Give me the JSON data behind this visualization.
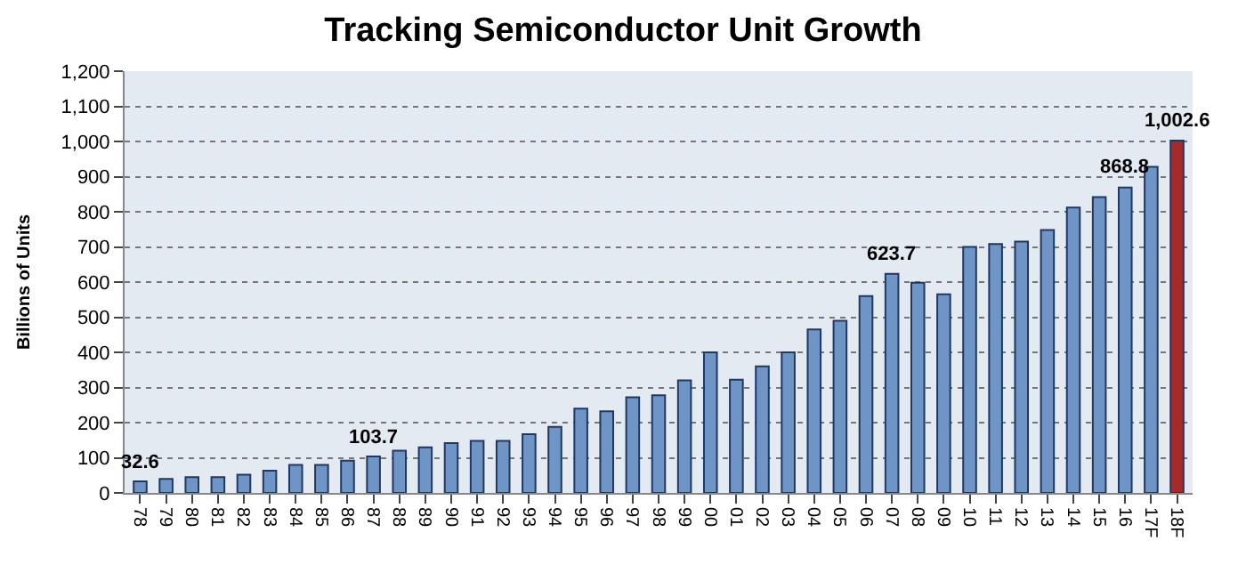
{
  "chart_data": {
    "type": "bar",
    "title": "Tracking Semiconductor Unit Growth",
    "ylabel": "Billions of Units",
    "categories": [
      "78",
      "79",
      "80",
      "81",
      "82",
      "83",
      "84",
      "85",
      "86",
      "87",
      "88",
      "89",
      "90",
      "91",
      "92",
      "93",
      "94",
      "95",
      "96",
      "97",
      "98",
      "99",
      "00",
      "01",
      "02",
      "03",
      "04",
      "05",
      "06",
      "07",
      "08",
      "09",
      "10",
      "11",
      "12",
      "13",
      "14",
      "15",
      "16",
      "17F",
      "18F"
    ],
    "values": [
      32.6,
      40,
      45,
      45,
      52,
      63,
      80,
      80,
      92,
      103.7,
      120,
      130,
      142,
      148,
      148,
      167,
      188,
      240,
      232,
      272,
      278,
      320,
      400,
      322,
      360,
      400,
      465,
      490,
      560,
      623.7,
      598,
      565,
      700,
      708,
      715,
      748,
      812,
      842,
      868.8,
      928,
      1002.6
    ],
    "colors": [
      "#6f94c6",
      "#6f94c6",
      "#6f94c6",
      "#6f94c6",
      "#6f94c6",
      "#6f94c6",
      "#6f94c6",
      "#6f94c6",
      "#6f94c6",
      "#6f94c6",
      "#6f94c6",
      "#6f94c6",
      "#6f94c6",
      "#6f94c6",
      "#6f94c6",
      "#6f94c6",
      "#6f94c6",
      "#6f94c6",
      "#6f94c6",
      "#6f94c6",
      "#6f94c6",
      "#6f94c6",
      "#6f94c6",
      "#6f94c6",
      "#6f94c6",
      "#6f94c6",
      "#6f94c6",
      "#6f94c6",
      "#6f94c6",
      "#6f94c6",
      "#6f94c6",
      "#6f94c6",
      "#6f94c6",
      "#6f94c6",
      "#6f94c6",
      "#6f94c6",
      "#6f94c6",
      "#6f94c6",
      "#6f94c6",
      "#6f94c6",
      "#a52a2a"
    ],
    "value_labels": [
      "32.6",
      null,
      null,
      null,
      null,
      null,
      null,
      null,
      null,
      "103.7",
      null,
      null,
      null,
      null,
      null,
      null,
      null,
      null,
      null,
      null,
      null,
      null,
      null,
      null,
      null,
      null,
      null,
      null,
      null,
      "623.7",
      null,
      null,
      null,
      null,
      null,
      null,
      null,
      null,
      "868.8",
      null,
      "1,002.6"
    ],
    "ylim": [
      0,
      1200
    ],
    "yticks": [
      0,
      {
        "value": 100,
        "label": "100"
      },
      {
        "value": 200,
        "label": "200"
      },
      {
        "value": 300,
        "label": "300"
      },
      {
        "value": 400,
        "label": "400"
      },
      {
        "value": 500,
        "label": "500"
      },
      {
        "value": 600,
        "label": "600"
      },
      {
        "value": 700,
        "label": "700"
      },
      {
        "value": 800,
        "label": "800"
      },
      {
        "value": 900,
        "label": "900"
      },
      {
        "value": 1000,
        "label": "1,000"
      },
      {
        "value": 1100,
        "label": "1,100"
      },
      {
        "value": 1200,
        "label": "1,200"
      }
    ],
    "grid": "y"
  }
}
